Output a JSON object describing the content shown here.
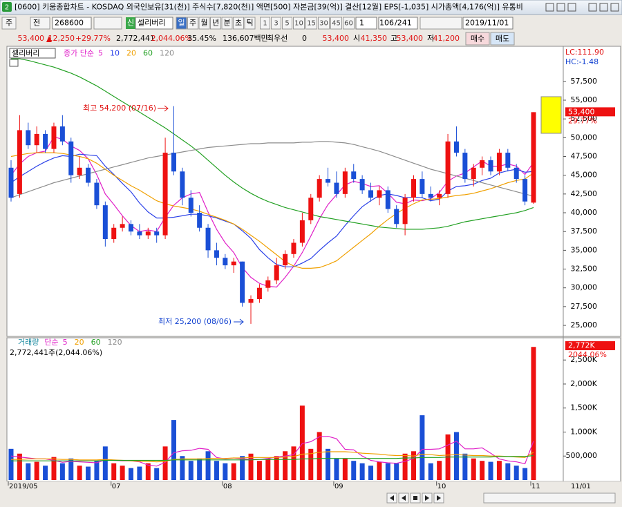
{
  "header": {
    "icon": "2",
    "title": "[0600] 키움종합차트 - KOSDAQ 외국인보유[31(천)] 주식수[7,820(천)] 액면[500] 자본금[39(억)] 결산[12월] EPS[-1,035] 시가총액[4,176(억)] 유통비"
  },
  "toolbar": {
    "period_type": "주",
    "scope": "전",
    "code": "268600",
    "market_badge": "신",
    "name": "셀리버리",
    "intervals": [
      "일",
      "주",
      "월",
      "년",
      "분",
      "초",
      "틱"
    ],
    "minutes": [
      "1",
      "3",
      "5",
      "10",
      "15",
      "30",
      "45",
      "60"
    ],
    "multiplier": "1",
    "position": "106",
    "total": "/241",
    "date": "2019/11/01"
  },
  "info": {
    "price": "53,400",
    "change": "12,250",
    "change_rate": "+29.77%",
    "volume": "2,772,441",
    "volume_rate": "2,044.06%",
    "turnover": "35.45%",
    "amount": "136,607백만",
    "best_label": "최우선",
    "best_value": "0",
    "ask": "53,400",
    "open_label": "시",
    "open": "41,350",
    "high_label": "고",
    "high": "53,400",
    "low_label": "저",
    "low": "41,200",
    "buy": "매수",
    "sell": "매도"
  },
  "chart_data": [
    {
      "type": "candlestick",
      "name": "셀리버리",
      "legend_prefix": "종가 단순",
      "open": [
        46000,
        42500,
        51000,
        49000,
        50500,
        48500,
        51500,
        49500,
        45000,
        46000,
        44000,
        41000,
        36500,
        38000,
        38500,
        37500,
        37000,
        37500,
        37000,
        48000,
        45500,
        42000,
        40000,
        38000,
        35000,
        34000,
        33000,
        33500,
        28000,
        28500,
        30000,
        31000,
        33000,
        34500,
        36000,
        39000,
        42000,
        44500,
        44000,
        42500,
        45500,
        44500,
        43000,
        42000,
        43000,
        40500,
        38500,
        42000,
        44500,
        42500,
        42000,
        42500,
        49500,
        48000,
        44500,
        46000,
        47000,
        45500,
        48000,
        46000,
        44500,
        41350
      ],
      "high": [
        47000,
        53000,
        52000,
        51500,
        51000,
        52000,
        53000,
        50000,
        47500,
        46500,
        44500,
        41500,
        38500,
        39500,
        39000,
        38500,
        38000,
        38000,
        50000,
        54200,
        46000,
        43000,
        41000,
        38500,
        36000,
        34500,
        34000,
        33500,
        29000,
        30500,
        31500,
        34000,
        35000,
        36500,
        40000,
        42500,
        45000,
        46000,
        45500,
        46000,
        46500,
        45000,
        44000,
        43500,
        43500,
        41000,
        42500,
        45000,
        45500,
        43500,
        43000,
        50500,
        51500,
        48500,
        46500,
        47500,
        47500,
        48500,
        48500,
        46500,
        45000,
        53400
      ],
      "low": [
        41500,
        42000,
        48500,
        48000,
        48000,
        48000,
        49000,
        44000,
        44500,
        43500,
        40500,
        35500,
        36000,
        37500,
        37000,
        36500,
        36500,
        36000,
        36500,
        45000,
        41000,
        39500,
        37500,
        34000,
        33000,
        32500,
        32000,
        27500,
        25200,
        28000,
        29500,
        30500,
        32500,
        34000,
        35500,
        38500,
        41500,
        43500,
        42000,
        42000,
        44000,
        42500,
        41500,
        41000,
        40000,
        38000,
        37000,
        41500,
        42000,
        41500,
        41000,
        42000,
        47500,
        44000,
        43500,
        45000,
        45000,
        45000,
        45500,
        44000,
        41000,
        41200
      ],
      "close": [
        42000,
        51000,
        49000,
        50500,
        48500,
        51500,
        49500,
        45000,
        46000,
        44000,
        41000,
        36500,
        38000,
        38500,
        37500,
        37000,
        37500,
        37000,
        48000,
        45500,
        42000,
        40000,
        38000,
        35000,
        34000,
        33000,
        33500,
        28000,
        28500,
        30000,
        31000,
        33000,
        34500,
        36000,
        39000,
        42000,
        44500,
        44000,
        42500,
        45500,
        44500,
        43000,
        42000,
        43000,
        40500,
        38500,
        42000,
        44500,
        42500,
        42000,
        42500,
        49500,
        48000,
        44500,
        46000,
        47000,
        45500,
        48000,
        46000,
        44500,
        41500,
        53400
      ],
      "up_color": "#ee1111",
      "down_color": "#1a4fd6",
      "series": [
        {
          "name": "5",
          "color": "#e020c8",
          "values": [
            45000,
            46500,
            47500,
            48000,
            48200,
            50100,
            49800,
            48900,
            48300,
            47200,
            45100,
            42500,
            41100,
            39600,
            38300,
            37500,
            37700,
            37500,
            39400,
            41000,
            42000,
            42500,
            42700,
            40100,
            37800,
            36000,
            34700,
            32700,
            31400,
            30600,
            30200,
            30100,
            31400,
            32900,
            34700,
            36900,
            39200,
            41100,
            42400,
            43700,
            44200,
            43900,
            43500,
            43600,
            42600,
            41400,
            41200,
            41700,
            41600,
            41900,
            42700,
            44200,
            44900,
            45300,
            46100,
            46900,
            46200,
            46200,
            46500,
            46200,
            45100,
            46700
          ]
        },
        {
          "name": "10",
          "color": "#2a40e8",
          "values": [
            44000,
            44800,
            45500,
            46200,
            46800,
            47300,
            47600,
            47500,
            47800,
            47700,
            47600,
            46200,
            45100,
            43900,
            42800,
            41300,
            40100,
            39300,
            39300,
            39400,
            39600,
            39800,
            39800,
            39600,
            39300,
            38900,
            38500,
            37600,
            36600,
            35100,
            34000,
            33100,
            32800,
            32800,
            33300,
            33900,
            35000,
            36000,
            36900,
            38300,
            39600,
            40800,
            41600,
            42300,
            42500,
            42300,
            42000,
            42100,
            42000,
            41600,
            41800,
            42900,
            43500,
            43600,
            43800,
            44300,
            44600,
            45300,
            45600,
            45800,
            45400,
            45500
          ]
        },
        {
          "name": "20",
          "color": "#f0a000",
          "values": [
            47500,
            47700,
            47900,
            48000,
            48000,
            48000,
            47900,
            47700,
            47500,
            47200,
            46600,
            45800,
            45000,
            44300,
            43600,
            43000,
            42300,
            41600,
            41200,
            40900,
            40700,
            40500,
            40200,
            39800,
            39400,
            39000,
            38500,
            37800,
            37000,
            36200,
            35300,
            34400,
            33500,
            32900,
            32600,
            32600,
            32700,
            33100,
            33600,
            34500,
            35400,
            36300,
            37200,
            38200,
            39100,
            39900,
            40600,
            41200,
            41700,
            41800,
            41900,
            42100,
            42300,
            42400,
            42600,
            42900,
            43200,
            43600,
            44000,
            44300,
            44500,
            45300
          ]
        },
        {
          "name": "60",
          "color": "#22a022",
          "values": [
            60500,
            60500,
            60300,
            60000,
            59700,
            59400,
            59000,
            58600,
            58100,
            57500,
            56900,
            56200,
            55500,
            54800,
            54100,
            53400,
            52700,
            52000,
            51300,
            50500,
            49700,
            48900,
            48000,
            47000,
            46000,
            45000,
            44100,
            43300,
            42600,
            42000,
            41500,
            41100,
            40700,
            40400,
            40100,
            39800,
            39500,
            39300,
            39100,
            38900,
            38700,
            38500,
            38300,
            38100,
            38000,
            37900,
            37800,
            37800,
            37800,
            37900,
            38000,
            38200,
            38500,
            38800,
            39000,
            39200,
            39400,
            39600,
            39800,
            40000,
            40300,
            40700
          ]
        },
        {
          "name": "120",
          "color": "#8c8c8c",
          "values": [
            42000,
            42400,
            42800,
            43200,
            43600,
            44000,
            44300,
            44600,
            44900,
            45200,
            45500,
            45800,
            46100,
            46400,
            46700,
            47000,
            47300,
            47500,
            47700,
            47900,
            48100,
            48300,
            48500,
            48700,
            48800,
            48900,
            49000,
            49100,
            49200,
            49200,
            49300,
            49300,
            49300,
            49300,
            49400,
            49400,
            49500,
            49500,
            49400,
            49300,
            49100,
            48800,
            48500,
            48200,
            47800,
            47400,
            47000,
            46600,
            46200,
            45800,
            45500,
            45200,
            44900,
            44600,
            44300,
            44000,
            43700,
            43400,
            43100,
            42800,
            42500,
            42200
          ]
        }
      ],
      "ylim": [
        23900,
        61900
      ],
      "yticks": [
        {
          "value": 25000,
          "label": "25,000"
        },
        {
          "value": 27500,
          "label": "27,500"
        },
        {
          "value": 30000,
          "label": "30,000"
        },
        {
          "value": 32500,
          "label": "32,500"
        },
        {
          "value": 35000,
          "label": "35,000"
        },
        {
          "value": 37500,
          "label": "37,500"
        },
        {
          "value": 40000,
          "label": "40,000"
        },
        {
          "value": 42500,
          "label": "42,500"
        },
        {
          "value": 45000,
          "label": "45,000"
        },
        {
          "value": 47500,
          "label": "47,500"
        },
        {
          "value": 50000,
          "label": "50,000"
        },
        {
          "value": 52500,
          "label": "52,500"
        },
        {
          "value": 55000,
          "label": "55,000"
        },
        {
          "value": 57500,
          "label": "57,500"
        }
      ],
      "annotations": [
        {
          "text": "최고 54,200 (07/16)",
          "color": "#e01010"
        },
        {
          "text": "최저 25,200 (08/06)",
          "color": "#1040d0"
        }
      ],
      "lc_label": "LC:111.90",
      "hc_label": "HC:-1.48",
      "last_label": "53,400",
      "last_change": "29.77%"
    },
    {
      "type": "bar",
      "title": "거래량",
      "legend_prefix": "단순",
      "legend_extra": "120",
      "categories": [
        "2019/05",
        null,
        null,
        null,
        null,
        null,
        null,
        null,
        null,
        null,
        null,
        null,
        "07",
        null,
        null,
        null,
        null,
        null,
        null,
        null,
        null,
        null,
        null,
        null,
        null,
        "08",
        null,
        null,
        null,
        null,
        null,
        null,
        null,
        null,
        null,
        null,
        null,
        null,
        "09",
        null,
        null,
        null,
        null,
        null,
        null,
        null,
        null,
        null,
        null,
        null,
        "10",
        null,
        null,
        null,
        null,
        null,
        null,
        null,
        null,
        null,
        null,
        "11"
      ],
      "values": [
        650000,
        550000,
        350000,
        380000,
        300000,
        480000,
        350000,
        450000,
        300000,
        280000,
        400000,
        700000,
        350000,
        300000,
        250000,
        280000,
        350000,
        250000,
        700000,
        1250000,
        500000,
        400000,
        450000,
        600000,
        400000,
        350000,
        350000,
        500000,
        550000,
        400000,
        450000,
        500000,
        600000,
        700000,
        1550000,
        650000,
        1000000,
        650000,
        450000,
        450000,
        400000,
        350000,
        300000,
        380000,
        350000,
        350000,
        550000,
        600000,
        1350000,
        350000,
        400000,
        950000,
        1000000,
        550000,
        450000,
        400000,
        380000,
        400000,
        350000,
        300000,
        250000,
        2772441
      ],
      "series": [
        {
          "name": "5",
          "color": "#e020c8",
          "values": [
            500000,
            480000,
            460000,
            440000,
            440000,
            410000,
            370000,
            390000,
            380000,
            370000,
            360000,
            420000,
            410000,
            400000,
            400000,
            380000,
            310000,
            290000,
            370000,
            570000,
            610000,
            620000,
            660000,
            640000,
            470000,
            440000,
            460000,
            440000,
            430000,
            430000,
            450000,
            480000,
            500000,
            530000,
            760000,
            800000,
            900000,
            910000,
            860000,
            640000,
            630000,
            500000,
            410000,
            380000,
            360000,
            350000,
            390000,
            450000,
            640000,
            640000,
            650000,
            730000,
            810000,
            650000,
            650000,
            670000,
            560000,
            440000,
            400000,
            380000,
            340000,
            810000
          ]
        },
        {
          "name": "20",
          "color": "#f0a000",
          "values": [
            430000,
            430000,
            440000,
            440000,
            440000,
            440000,
            430000,
            430000,
            420000,
            420000,
            420000,
            430000,
            420000,
            410000,
            400000,
            390000,
            390000,
            380000,
            390000,
            430000,
            440000,
            440000,
            440000,
            450000,
            450000,
            450000,
            460000,
            460000,
            470000,
            470000,
            470000,
            470000,
            480000,
            490000,
            540000,
            550000,
            580000,
            590000,
            590000,
            590000,
            580000,
            560000,
            550000,
            540000,
            520000,
            510000,
            510000,
            500000,
            540000,
            530000,
            510000,
            520000,
            530000,
            520000,
            510000,
            510000,
            500000,
            500000,
            490000,
            480000,
            470000,
            580000
          ]
        },
        {
          "name": "60",
          "color": "#22a022",
          "values": [
            400000,
            400000,
            400000,
            400000,
            400000,
            400000,
            400000,
            400000,
            400000,
            400000,
            400000,
            410000,
            410000,
            410000,
            410000,
            410000,
            410000,
            410000,
            410000,
            420000,
            420000,
            420000,
            420000,
            420000,
            420000,
            420000,
            420000,
            420000,
            420000,
            430000,
            430000,
            430000,
            430000,
            430000,
            440000,
            440000,
            450000,
            450000,
            450000,
            450000,
            450000,
            450000,
            450000,
            450000,
            450000,
            450000,
            460000,
            460000,
            470000,
            470000,
            470000,
            480000,
            480000,
            480000,
            480000,
            480000,
            480000,
            490000,
            490000,
            490000,
            490000,
            510000
          ]
        }
      ],
      "summary": "2,772,441주(2,044.06%)",
      "last_label": "2,772K",
      "last_change": "2044.06%",
      "date_label": "11/01",
      "ylim": [
        0,
        2920000
      ],
      "yticks": [
        {
          "value": 500000,
          "label": "500,000"
        },
        {
          "value": 1000000,
          "label": "1,000K"
        },
        {
          "value": 1500000,
          "label": "1,500K"
        },
        {
          "value": 2000000,
          "label": "2,000K"
        },
        {
          "value": 2500000,
          "label": "2,500K"
        }
      ]
    }
  ]
}
